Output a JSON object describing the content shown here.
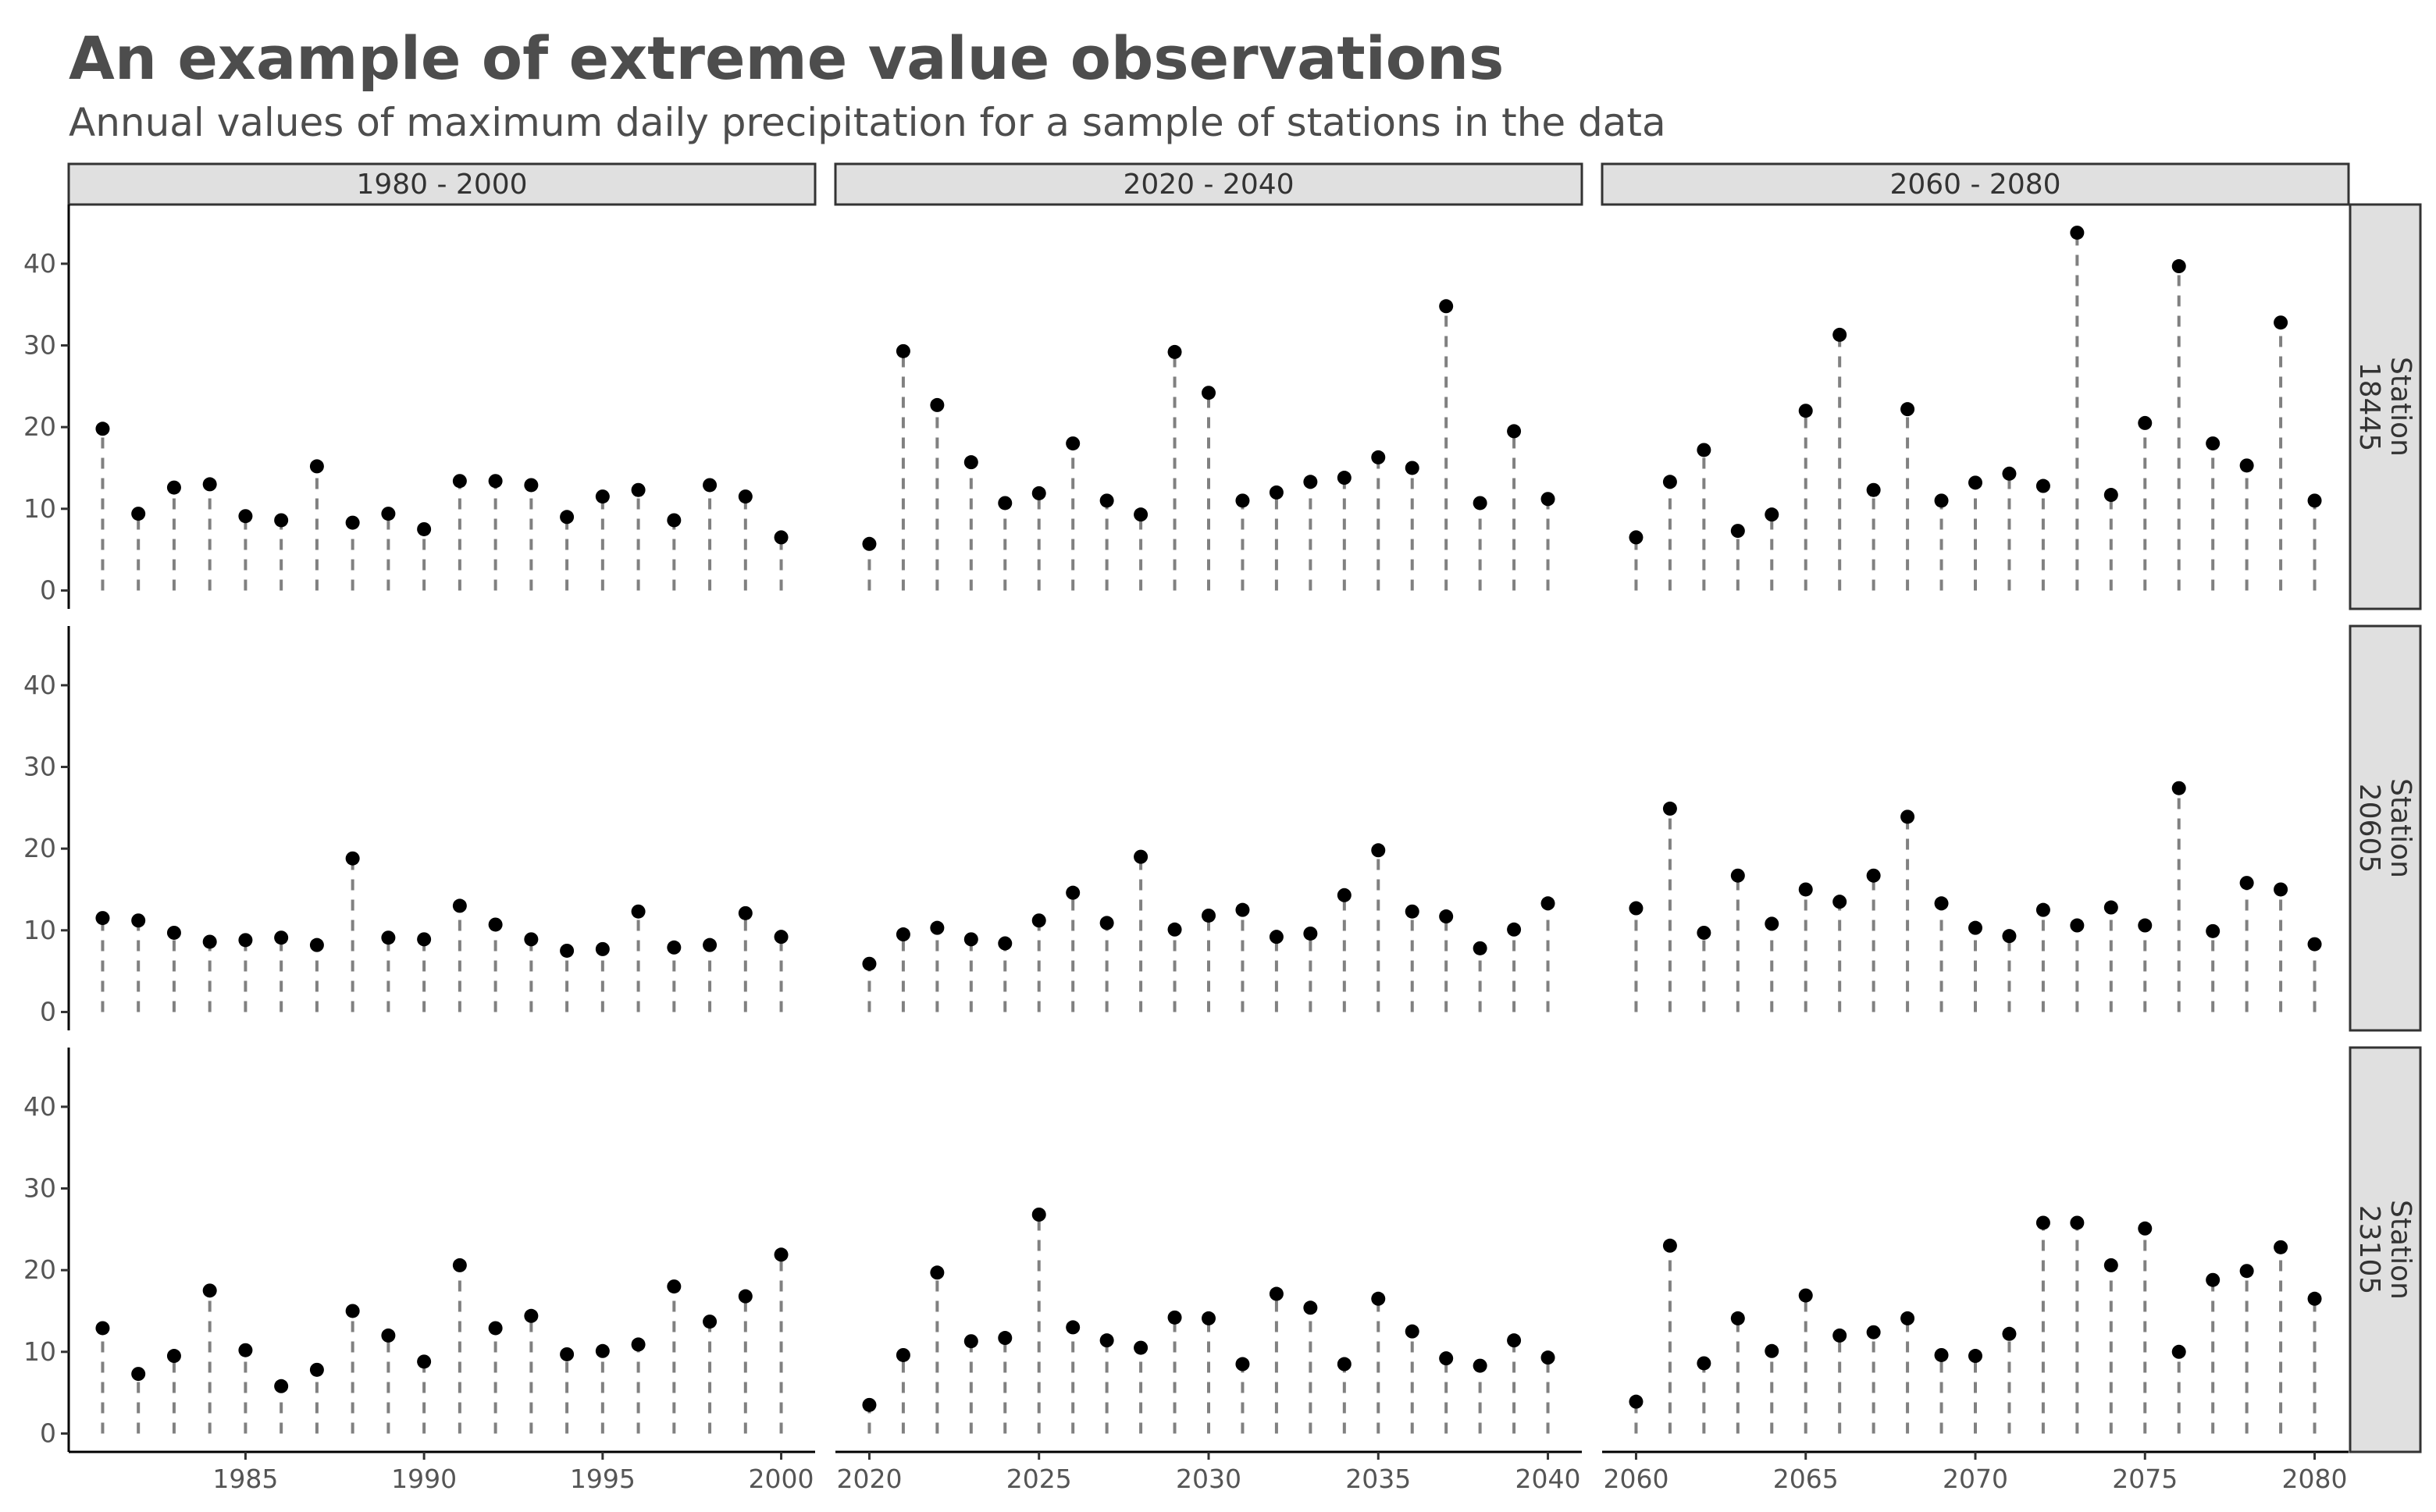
{
  "chart_data": {
    "type": "lollipop",
    "title": "An example of extreme value observations",
    "subtitle": "Annual values of maximum daily precipitation for a sample of stations in the data",
    "xlabel": "",
    "ylabel": "",
    "ylim": [
      0,
      45
    ],
    "yticks": [
      0,
      10,
      20,
      30,
      40
    ],
    "grid": false,
    "facet_columns": [
      {
        "label": "1980 - 2000",
        "xlim": [
          1981,
          2000
        ],
        "xticks": [
          1985,
          1990,
          1995,
          2000
        ]
      },
      {
        "label": "2020 - 2040",
        "xlim": [
          2020,
          2040
        ],
        "xticks": [
          2020,
          2025,
          2030,
          2035,
          2040
        ]
      },
      {
        "label": "2060 - 2080",
        "xlim": [
          2060,
          2080
        ],
        "xticks": [
          2060,
          2065,
          2070,
          2075,
          2080
        ]
      }
    ],
    "facet_rows": [
      "Station\n18445",
      "Station\n20605",
      "Station\n23105"
    ],
    "series": [
      {
        "station": "Station 18445",
        "periods": [
          {
            "x": [
              1981,
              1982,
              1983,
              1984,
              1985,
              1986,
              1987,
              1988,
              1989,
              1990,
              1991,
              1992,
              1993,
              1994,
              1995,
              1996,
              1997,
              1998,
              1999,
              2000
            ],
            "y": [
              19.8,
              9.4,
              12.6,
              13,
              9.1,
              8.6,
              15.2,
              8.3,
              9.4,
              7.5,
              13.4,
              13.4,
              12.9,
              9,
              11.5,
              12.3,
              8.6,
              12.9,
              11.5,
              6.5
            ]
          },
          {
            "x": [
              2020,
              2021,
              2022,
              2023,
              2024,
              2025,
              2026,
              2027,
              2028,
              2029,
              2030,
              2031,
              2032,
              2033,
              2034,
              2035,
              2036,
              2037,
              2038,
              2039,
              2040
            ],
            "y": [
              5.7,
              29.3,
              22.7,
              15.7,
              10.7,
              11.9,
              18,
              11,
              9.3,
              29.2,
              24.2,
              11,
              12,
              13.3,
              13.8,
              16.3,
              15,
              34.8,
              10.7,
              19.5,
              11.2
            ]
          },
          {
            "x": [
              2060,
              2061,
              2062,
              2063,
              2064,
              2065,
              2066,
              2067,
              2068,
              2069,
              2070,
              2071,
              2072,
              2073,
              2074,
              2075,
              2076,
              2077,
              2078,
              2079,
              2080
            ],
            "y": [
              6.5,
              13.3,
              17.2,
              7.3,
              9.3,
              22,
              31.3,
              12.3,
              22.2,
              11,
              13.2,
              14.3,
              12.8,
              43.8,
              11.7,
              20.5,
              39.7,
              18,
              15.3,
              32.8,
              11
            ]
          }
        ]
      },
      {
        "station": "Station 20605",
        "periods": [
          {
            "x": [
              1981,
              1982,
              1983,
              1984,
              1985,
              1986,
              1987,
              1988,
              1989,
              1990,
              1991,
              1992,
              1993,
              1994,
              1995,
              1996,
              1997,
              1998,
              1999,
              2000
            ],
            "y": [
              11.5,
              11.2,
              9.7,
              8.6,
              8.8,
              9.1,
              8.2,
              18.8,
              9.1,
              8.9,
              13,
              10.7,
              8.9,
              7.5,
              7.7,
              12.3,
              7.9,
              8.2,
              12.1,
              9.2
            ]
          },
          {
            "x": [
              2020,
              2021,
              2022,
              2023,
              2024,
              2025,
              2026,
              2027,
              2028,
              2029,
              2030,
              2031,
              2032,
              2033,
              2034,
              2035,
              2036,
              2037,
              2038,
              2039,
              2040
            ],
            "y": [
              5.9,
              9.5,
              10.3,
              8.9,
              8.4,
              11.2,
              14.6,
              10.9,
              19,
              10.1,
              11.8,
              12.5,
              9.2,
              9.6,
              14.3,
              19.8,
              12.3,
              11.7,
              7.8,
              10.1,
              13.3
            ]
          },
          {
            "x": [
              2060,
              2061,
              2062,
              2063,
              2064,
              2065,
              2066,
              2067,
              2068,
              2069,
              2070,
              2071,
              2072,
              2073,
              2074,
              2075,
              2076,
              2077,
              2078,
              2079,
              2080
            ],
            "y": [
              12.7,
              24.9,
              9.7,
              16.7,
              10.8,
              15,
              13.5,
              16.7,
              23.9,
              13.3,
              10.3,
              9.3,
              12.5,
              10.6,
              12.8,
              10.6,
              27.4,
              9.9,
              15.8,
              15,
              8.3
            ]
          }
        ]
      },
      {
        "station": "Station 23105",
        "periods": [
          {
            "x": [
              1981,
              1982,
              1983,
              1984,
              1985,
              1986,
              1987,
              1988,
              1989,
              1990,
              1991,
              1992,
              1993,
              1994,
              1995,
              1996,
              1997,
              1998,
              1999,
              2000
            ],
            "y": [
              12.9,
              7.3,
              9.5,
              17.5,
              10.2,
              5.8,
              7.8,
              15,
              12,
              8.8,
              20.6,
              12.9,
              14.4,
              9.7,
              10.1,
              10.9,
              18,
              13.7,
              16.8,
              21.9
            ]
          },
          {
            "x": [
              2020,
              2021,
              2022,
              2023,
              2024,
              2025,
              2026,
              2027,
              2028,
              2029,
              2030,
              2031,
              2032,
              2033,
              2034,
              2035,
              2036,
              2037,
              2038,
              2039,
              2040
            ],
            "y": [
              3.5,
              9.6,
              19.7,
              11.3,
              11.7,
              26.8,
              13,
              11.4,
              10.5,
              14.2,
              14.1,
              8.5,
              17.1,
              15.4,
              8.5,
              16.5,
              12.5,
              9.2,
              8.3,
              11.4,
              9.3
            ]
          },
          {
            "x": [
              2060,
              2061,
              2062,
              2063,
              2064,
              2065,
              2066,
              2067,
              2068,
              2069,
              2070,
              2071,
              2072,
              2073,
              2074,
              2075,
              2076,
              2077,
              2078,
              2079,
              2080
            ],
            "y": [
              3.9,
              23,
              8.6,
              14.1,
              10.1,
              16.9,
              12,
              12.4,
              14.1,
              9.6,
              9.5,
              12.2,
              25.8,
              25.8,
              20.6,
              25.1,
              10,
              18.8,
              19.9,
              22.8,
              16.5
            ]
          }
        ]
      }
    ]
  }
}
